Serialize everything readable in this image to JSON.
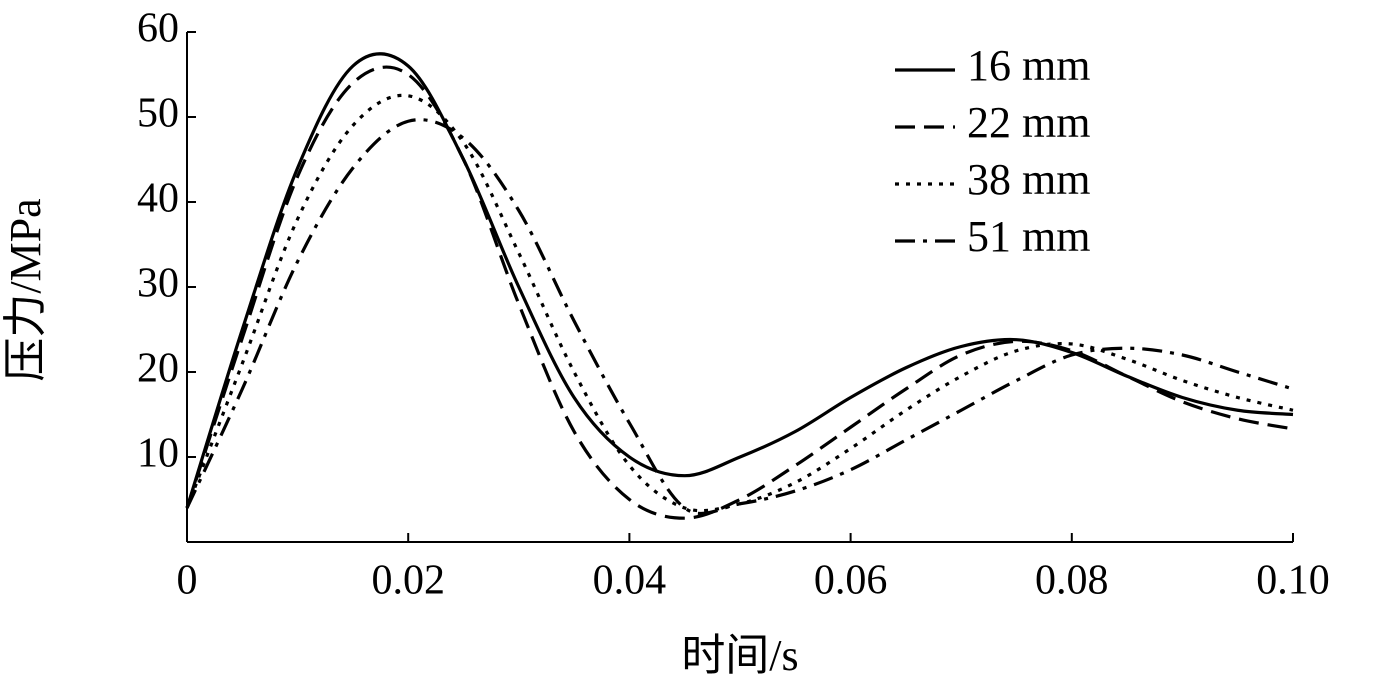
{
  "chart_data": {
    "type": "line",
    "x_label": "时间/s",
    "y_label": "压力/MPa",
    "x": [
      0,
      0.005,
      0.01,
      0.015,
      0.02,
      0.025,
      0.03,
      0.035,
      0.04,
      0.045,
      0.05,
      0.055,
      0.06,
      0.065,
      0.07,
      0.075,
      0.08,
      0.085,
      0.09,
      0.095,
      0.1
    ],
    "series": [
      {
        "name": "16 mm",
        "color": "#000000",
        "line_style": "solid",
        "values": [
          4,
          25,
          44,
          56,
          56,
          45,
          30,
          17,
          10,
          7.8,
          10,
          13,
          17,
          20.5,
          23,
          23.8,
          22.3,
          19.5,
          17,
          15.5,
          15
        ]
      },
      {
        "name": "22 mm",
        "color": "#000000",
        "line_style": "dashed",
        "values": [
          4,
          24,
          43,
          54,
          55,
          45,
          28,
          13,
          5,
          2.8,
          5,
          9,
          13.5,
          18,
          22,
          23.6,
          22.5,
          19.5,
          16.5,
          14.5,
          13.3
        ]
      },
      {
        "name": "38 mm",
        "color": "#000000",
        "line_style": "dotted",
        "values": [
          4,
          21,
          38,
          49,
          52.5,
          47,
          34,
          20,
          9,
          4,
          4.5,
          7,
          11,
          15.5,
          19.5,
          22.5,
          23.3,
          21.5,
          19,
          17,
          15.5
        ]
      },
      {
        "name": "51 mm",
        "color": "#000000",
        "line_style": "dashdot",
        "values": [
          4,
          18,
          33,
          44,
          49.5,
          47.5,
          39,
          26,
          14,
          4,
          4.5,
          6,
          8.5,
          12,
          15.5,
          19,
          22,
          22.8,
          22,
          20,
          18
        ]
      }
    ],
    "xlim": [
      0,
      0.1
    ],
    "ylim": [
      0,
      60
    ],
    "xticks": [
      0,
      0.02,
      0.04,
      0.06,
      0.08,
      {
        "value": 0.1,
        "label": "0.10"
      }
    ],
    "yticks": [
      10,
      20,
      30,
      40,
      50,
      60
    ],
    "grid": false,
    "legend_position": "top-right"
  }
}
